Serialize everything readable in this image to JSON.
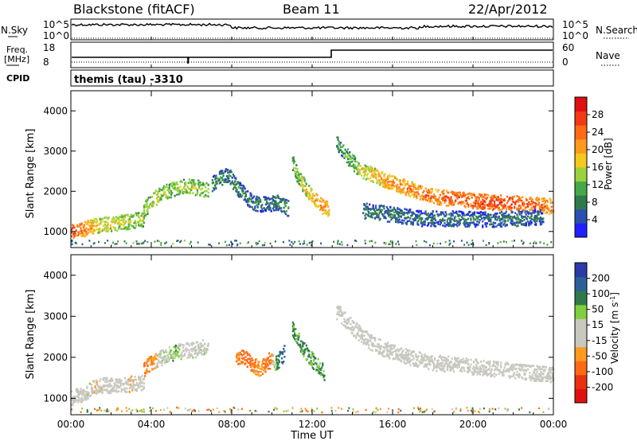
{
  "header": {
    "station": "Blackstone (fitACF)",
    "beam": "Beam 11",
    "date": "22/Apr/2012"
  },
  "top_panels": {
    "nsky_label": "N.Sky",
    "nsearch_label": "N.Search",
    "sky_ticks": [
      "10^5",
      "10^0"
    ],
    "freq_label_line1": "Freq.",
    "freq_label_line2": "[MHz]",
    "freq_ticks": [
      "18",
      "8"
    ],
    "nave_label": "Nave",
    "nave_ticks": [
      "60",
      "0"
    ],
    "cpid_label": "CPID",
    "cpid_text": "themis (tau) -3310"
  },
  "colors": {
    "power_scale": [
      "#1f1fff",
      "#2a4fb0",
      "#2f7a4a",
      "#46a846",
      "#9ad23c",
      "#f5c81e",
      "#ff9a1e",
      "#ff6a14",
      "#f23a12",
      "#e01010"
    ],
    "velocity_scale": [
      "#2a3aa8",
      "#2a5f9a",
      "#2f7a4a",
      "#7fd03c",
      "#c8c8c0",
      "#c8c8c0",
      "#ff9a1e",
      "#ff6a14",
      "#e83212",
      "#e01010"
    ]
  },
  "chart_data": [
    {
      "type": "heatmap",
      "panel": "power",
      "ylabel": "Slant Range [km]",
      "y_ticks": [
        "1000",
        "2000",
        "3000",
        "4000"
      ],
      "ylim": [
        600,
        4500
      ],
      "xlim_hours": [
        0,
        24
      ],
      "colorbar_label": "Power [dB]",
      "colorbar_ticks": [
        "28",
        "24",
        "20",
        "16",
        "12",
        "8",
        "4"
      ],
      "colorbar_range": [
        0,
        30
      ],
      "series": [
        {
          "t": [
            0.0,
            0.4,
            0.8,
            1.2,
            1.6,
            2.0,
            2.4,
            2.8,
            3.2,
            3.6
          ],
          "range_km": [
            960,
            1000,
            1060,
            1120,
            1160,
            1180,
            1200,
            1230,
            1260,
            1300
          ],
          "power_db": [
            26,
            24,
            21,
            18,
            17,
            17,
            16,
            16,
            15,
            15
          ]
        },
        {
          "t": [
            3.6,
            4.0,
            4.4,
            4.8,
            5.2,
            5.6,
            6.0,
            6.4,
            6.8
          ],
          "range_km": [
            1500,
            1750,
            1900,
            2000,
            2050,
            2100,
            2100,
            2050,
            2000
          ],
          "power_db": [
            14,
            15,
            15,
            14,
            14,
            15,
            15,
            14,
            13
          ]
        },
        {
          "t": [
            7.0,
            7.4,
            7.8,
            8.2,
            8.6,
            9.0,
            9.6,
            10.2,
            10.8
          ],
          "range_km": [
            2150,
            2300,
            2400,
            2100,
            1900,
            1700,
            1650,
            1700,
            1550
          ],
          "power_db": [
            10,
            9,
            8,
            9,
            8,
            8,
            7,
            9,
            10
          ]
        },
        {
          "t": [
            11.0,
            11.3,
            11.6,
            11.9,
            12.2,
            12.5,
            12.8
          ],
          "range_km": [
            2700,
            2300,
            2100,
            1900,
            1750,
            1600,
            1550
          ],
          "power_db": [
            12,
            14,
            16,
            18,
            20,
            21,
            20
          ]
        },
        {
          "t": [
            13.2,
            13.8,
            14.4,
            15.0,
            15.6,
            16.2,
            16.8,
            17.4,
            18.0,
            19.0,
            20.0,
            21.0,
            22.0,
            23.0,
            24.0
          ],
          "range_km": [
            3200,
            2800,
            2500,
            2400,
            2250,
            2150,
            2050,
            1950,
            1850,
            1800,
            1750,
            1700,
            1700,
            1650,
            1600
          ],
          "power_db": [
            10,
            12,
            16,
            18,
            20,
            21,
            22,
            22,
            23,
            24,
            25,
            26,
            25,
            24,
            22
          ]
        },
        {
          "t": [
            14.5,
            16.0,
            17.5,
            19.0,
            20.5,
            22.0,
            23.5
          ],
          "range_km": [
            1500,
            1400,
            1300,
            1300,
            1280,
            1300,
            1350
          ],
          "power_db": [
            8,
            8,
            7,
            8,
            7,
            8,
            7
          ]
        }
      ]
    },
    {
      "type": "heatmap",
      "panel": "velocity",
      "ylabel": "Slant Range [km]",
      "y_ticks": [
        "1000",
        "2000",
        "3000",
        "4000"
      ],
      "ylim": [
        600,
        4500
      ],
      "xlim_hours": [
        0,
        24
      ],
      "xlabel": "Time UT",
      "x_ticks": [
        "00:00",
        "04:00",
        "08:00",
        "12:00",
        "16:00",
        "20:00",
        "00:00"
      ],
      "colorbar_label": "Velocity [m s^-1]",
      "colorbar_ticks": [
        "200",
        "100",
        "50",
        "15",
        "-15",
        "-50",
        "-100",
        "-200"
      ],
      "series": [
        {
          "t": [
            0.0,
            0.4,
            0.8,
            1.2,
            1.6,
            2.0,
            2.4,
            2.8,
            3.2,
            3.6
          ],
          "range_km": [
            1000,
            1050,
            1150,
            1250,
            1300,
            1300,
            1320,
            1320,
            1350,
            1380
          ],
          "vel": [
            0,
            0,
            5,
            -5,
            0,
            0,
            0,
            -10,
            0,
            0
          ]
        },
        {
          "t": [
            3.6,
            4.0,
            4.4,
            4.8,
            5.2,
            5.6,
            6.0,
            6.4,
            6.8
          ],
          "range_km": [
            1700,
            1850,
            1950,
            2050,
            2100,
            2150,
            2150,
            2200,
            2250
          ],
          "vel": [
            -60,
            -40,
            0,
            10,
            20,
            0,
            0,
            5,
            0
          ]
        },
        {
          "t": [
            8.2,
            8.6,
            9.0,
            9.4,
            9.8,
            10.2,
            10.6
          ],
          "range_km": [
            1950,
            2000,
            1800,
            1700,
            1900,
            1850,
            2100
          ],
          "vel": [
            -50,
            -70,
            -60,
            -30,
            -80,
            40,
            120
          ]
        },
        {
          "t": [
            11.0,
            11.4,
            11.8,
            12.2,
            12.6
          ],
          "range_km": [
            2700,
            2300,
            2000,
            1800,
            1600
          ],
          "vel": [
            30,
            40,
            30,
            25,
            30
          ]
        },
        {
          "t": [
            13.2,
            14.0,
            15.0,
            16.0,
            17.0,
            18.0,
            19.0,
            20.0,
            21.0,
            22.0,
            23.0,
            24.0
          ],
          "range_km": [
            3100,
            2700,
            2300,
            2100,
            1950,
            1850,
            1800,
            1750,
            1700,
            1650,
            1600,
            1550
          ],
          "vel": [
            0,
            0,
            0,
            0,
            0,
            0,
            0,
            0,
            0,
            0,
            0,
            0
          ]
        }
      ]
    }
  ]
}
